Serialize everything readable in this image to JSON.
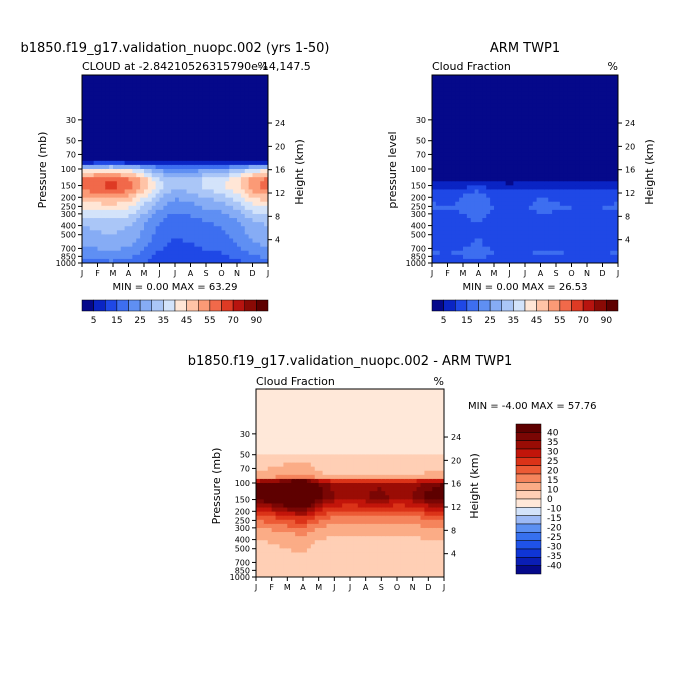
{
  "charts": {
    "model": {
      "main_title": "b1850.f19_g17.validation_nuopc.002 (yrs 1-50)",
      "subtitle": "CLOUD at -2.84210526315790e-14,147.5",
      "units": "%",
      "y_label": "Pressure (mb)",
      "right_label": "Height (km)",
      "minmax": "MIN =    0.00 MAX =   63.29"
    },
    "obs": {
      "main_title": "ARM TWP1",
      "subtitle": "Cloud Fraction",
      "units": "%",
      "y_label": "pressure level",
      "right_label": "Height (km)",
      "minmax": "MIN =    0.00 MAX =   26.53"
    },
    "diff": {
      "main_title": "b1850.f19_g17.validation_nuopc.002 - ARM TWP1",
      "subtitle": "Cloud Fraction",
      "units": "%",
      "y_label": "Pressure (mb)",
      "right_label": "Height (km)",
      "minmax": "MIN =   -4.00 MAX =   57.76"
    }
  },
  "chart_data": [
    {
      "type": "heatmap",
      "name": "model",
      "title": "b1850.f19_g17.validation_nuopc.002 (yrs 1-50)",
      "subtitle": "CLOUD at -2.84210526315790e-14,147.5",
      "x": [
        "J",
        "F",
        "M",
        "A",
        "M",
        "J",
        "J",
        "A",
        "S",
        "O",
        "N",
        "D",
        "J"
      ],
      "y_pressure_ticks": [
        30,
        50,
        70,
        100,
        150,
        200,
        250,
        300,
        400,
        500,
        700,
        850,
        1000
      ],
      "y_pressure_range": [
        10,
        1000
      ],
      "height_ticks_km": [
        4,
        8,
        12,
        16,
        20,
        24
      ],
      "levels": [
        5,
        10,
        15,
        20,
        25,
        30,
        35,
        40,
        45,
        50,
        55,
        60,
        70,
        80,
        90
      ],
      "colorbar_labels": [
        "5",
        "15",
        "25",
        "35",
        "45",
        "55",
        "70",
        "90"
      ],
      "min": 0.0,
      "max": 63.29,
      "z_profile": [
        {
          "p": 10,
          "v": 0
        },
        {
          "p": 70,
          "v": 0
        },
        {
          "p": 85,
          "v": 5
        },
        {
          "p": 100,
          "v": 25
        },
        {
          "p": 130,
          "v": 38
        },
        {
          "p": 160,
          "v": 38
        },
        {
          "p": 220,
          "v": 30
        },
        {
          "p": 300,
          "v": 24
        },
        {
          "p": 400,
          "v": 20
        },
        {
          "p": 600,
          "v": 18
        },
        {
          "p": 1000,
          "v": 12
        }
      ],
      "seasonal_factor": [
        1.5,
        1.55,
        1.6,
        1.5,
        1.25,
        0.95,
        0.8,
        0.85,
        0.95,
        1.0,
        1.15,
        1.4,
        1.5
      ]
    },
    {
      "type": "heatmap",
      "name": "obs",
      "title": "ARM TWP1",
      "subtitle": "Cloud Fraction",
      "x": [
        "J",
        "F",
        "M",
        "A",
        "M",
        "J",
        "J",
        "A",
        "S",
        "O",
        "N",
        "D",
        "J"
      ],
      "y_pressure_ticks": [
        30,
        50,
        70,
        100,
        150,
        200,
        250,
        300,
        400,
        500,
        700,
        850,
        1000
      ],
      "y_pressure_range": [
        10,
        1000
      ],
      "height_ticks_km": [
        4,
        8,
        12,
        16,
        20,
        24
      ],
      "levels": [
        5,
        10,
        15,
        20,
        25,
        30,
        35,
        40,
        45,
        50,
        55,
        60,
        70,
        80,
        90
      ],
      "colorbar_labels": [
        "5",
        "15",
        "25",
        "35",
        "45",
        "55",
        "70",
        "90"
      ],
      "min": 0.0,
      "max": 26.53,
      "z_profile": [
        {
          "p": 10,
          "v": 0
        },
        {
          "p": 110,
          "v": 0
        },
        {
          "p": 140,
          "v": 5
        },
        {
          "p": 180,
          "v": 13
        },
        {
          "p": 260,
          "v": 15
        },
        {
          "p": 400,
          "v": 11
        },
        {
          "p": 600,
          "v": 12
        },
        {
          "p": 800,
          "v": 15
        },
        {
          "p": 1000,
          "v": 10
        }
      ],
      "seasonal_factor": [
        1.05,
        1.0,
        1.1,
        1.3,
        1.0,
        0.9,
        0.95,
        1.1,
        1.05,
        1.0,
        1.0,
        1.0,
        1.05
      ]
    },
    {
      "type": "heatmap",
      "name": "diff",
      "title": "b1850.f19_g17.validation_nuopc.002 - ARM TWP1",
      "subtitle": "Cloud Fraction",
      "x": [
        "J",
        "F",
        "M",
        "A",
        "M",
        "J",
        "J",
        "A",
        "S",
        "O",
        "N",
        "D",
        "J"
      ],
      "y_pressure_ticks": [
        30,
        50,
        70,
        100,
        150,
        200,
        250,
        300,
        400,
        500,
        700,
        850,
        1000
      ],
      "y_pressure_range": [
        10,
        1000
      ],
      "height_ticks_km": [
        4,
        8,
        12,
        16,
        20,
        24
      ],
      "levels": [
        -40,
        -35,
        -30,
        -25,
        -20,
        -15,
        -10,
        -5,
        0,
        5,
        10,
        15,
        20,
        25,
        30,
        35,
        40
      ],
      "colorbar_labels": [
        "40",
        "35",
        "30",
        "25",
        "20",
        "15",
        "10",
        "0",
        "-10",
        "-15",
        "-20",
        "-25",
        "-30",
        "-35",
        "-40"
      ],
      "min": -4.0,
      "max": 57.76,
      "z_profile": [
        {
          "p": 10,
          "v": -3
        },
        {
          "p": 48,
          "v": -3
        },
        {
          "p": 55,
          "v": 3
        },
        {
          "p": 85,
          "v": 6
        },
        {
          "p": 100,
          "v": 40
        },
        {
          "p": 140,
          "v": 44
        },
        {
          "p": 180,
          "v": 30
        },
        {
          "p": 230,
          "v": 18
        },
        {
          "p": 300,
          "v": 10
        },
        {
          "p": 400,
          "v": 5
        },
        {
          "p": 600,
          "v": 3
        },
        {
          "p": 1000,
          "v": 2
        }
      ],
      "seasonal_factor": [
        1.0,
        1.1,
        1.3,
        1.45,
        1.0,
        0.8,
        0.75,
        0.8,
        0.85,
        0.75,
        0.8,
        0.95,
        1.0
      ]
    }
  ]
}
